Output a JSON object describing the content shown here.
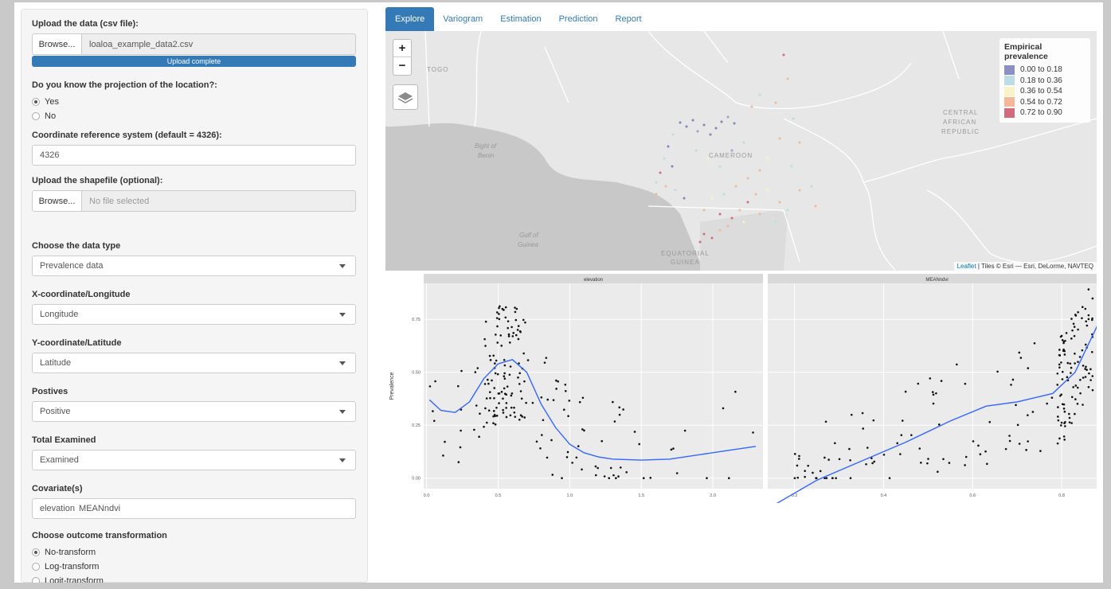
{
  "sidebar": {
    "upload": {
      "label": "Upload the data (csv file):",
      "browse": "Browse...",
      "filename": "loaloa_example_data2.csv",
      "progress": "Upload complete",
      "progress_value": 1.0
    },
    "projection": {
      "label": "Do you know the projection of the location?:",
      "options": [
        "Yes",
        "No"
      ],
      "selected": "Yes"
    },
    "crs": {
      "label": "Coordinate reference system (default = 4326):",
      "value": "4326"
    },
    "shapefile": {
      "label": "Upload the shapefile (optional):",
      "browse": "Browse...",
      "placeholder": "No file selected"
    },
    "data_type": {
      "label": "Choose the data type",
      "value": "Prevalence data"
    },
    "x_coord": {
      "label": "X-coordinate/Longitude",
      "value": "Longitude"
    },
    "y_coord": {
      "label": "Y-coordinate/Latitude",
      "value": "Latitude"
    },
    "positives": {
      "label": "Postives",
      "value": "Positive"
    },
    "examined": {
      "label": "Total Examined",
      "value": "Examined"
    },
    "covariates": {
      "label": "Covariate(s)",
      "items": [
        "elevation",
        "MEANndvi"
      ]
    },
    "transform": {
      "label": "Choose outcome transformation",
      "options": [
        "No-transform",
        "Log-transform",
        "Logit-transform"
      ],
      "selected": "No-transform"
    }
  },
  "tabs": [
    "Explore",
    "Variogram",
    "Estimation",
    "Prediction",
    "Report"
  ],
  "active_tab": "Explore",
  "map": {
    "zoom_in": "+",
    "zoom_out": "−",
    "layers_icon": "layers-icon",
    "legend": {
      "title": "Empirical prevalence",
      "items": [
        {
          "label": "0.00 to 0.18",
          "color": "#8b8fc4"
        },
        {
          "label": "0.18 to 0.36",
          "color": "#bedbe8"
        },
        {
          "label": "0.36 to 0.54",
          "color": "#faf3c5"
        },
        {
          "label": "0.54 to 0.72",
          "color": "#f4b79a"
        },
        {
          "label": "0.72 to 0.90",
          "color": "#d26b7c"
        }
      ]
    },
    "attribution_link": "Leaflet",
    "attribution_rest": " | Tiles © Esri — Esri, DeLorme, NAVTEQ",
    "labels": {
      "togo": "TOGO",
      "bight1": "Bight of",
      "bight2": "Benin",
      "cameroon": "CAMEROON",
      "car1": "CENTRAL",
      "car2": "AFRICAN",
      "car3": "REPUBLIC",
      "gulf1": "Gulf of",
      "gulf2": "Guinea",
      "eqg1": "EQUATORIAL",
      "eqg2": "GUINEA"
    }
  },
  "chart_data": [
    {
      "type": "scatter",
      "title": "elevation",
      "ylabel": "Prevalence",
      "xlim": [
        -0.02,
        2.35
      ],
      "ylim": [
        -0.05,
        0.92
      ],
      "xticks": [
        "0.0",
        "0.5",
        "1.0",
        "1.5",
        "2.0"
      ],
      "yticks": [
        "0.00",
        "0.25",
        "0.50",
        "0.75"
      ],
      "trend_points": [
        [
          0.02,
          0.37
        ],
        [
          0.1,
          0.32
        ],
        [
          0.2,
          0.31
        ],
        [
          0.3,
          0.36
        ],
        [
          0.4,
          0.47
        ],
        [
          0.5,
          0.54
        ],
        [
          0.6,
          0.56
        ],
        [
          0.7,
          0.5
        ],
        [
          0.8,
          0.35
        ],
        [
          0.9,
          0.24
        ],
        [
          1.0,
          0.16
        ],
        [
          1.1,
          0.12
        ],
        [
          1.2,
          0.1
        ],
        [
          1.3,
          0.09
        ],
        [
          1.5,
          0.085
        ],
        [
          1.7,
          0.09
        ],
        [
          1.9,
          0.11
        ],
        [
          2.1,
          0.13
        ],
        [
          2.3,
          0.15
        ]
      ]
    },
    {
      "type": "scatter",
      "title": "MEANndvi",
      "xlim": [
        0.14,
        0.9
      ],
      "ylim": [
        -0.05,
        0.92
      ],
      "xticks": [
        "0.2",
        "0.4",
        "0.6",
        "0.8"
      ],
      "yticks": [
        "0.00",
        "0.25",
        "0.50",
        "0.75"
      ],
      "trend_points": [
        [
          0.16,
          -0.12
        ],
        [
          0.25,
          -0.01
        ],
        [
          0.35,
          0.08
        ],
        [
          0.45,
          0.17
        ],
        [
          0.55,
          0.27
        ],
        [
          0.63,
          0.34
        ],
        [
          0.7,
          0.36
        ],
        [
          0.78,
          0.4
        ],
        [
          0.83,
          0.5
        ],
        [
          0.88,
          0.72
        ]
      ]
    }
  ]
}
